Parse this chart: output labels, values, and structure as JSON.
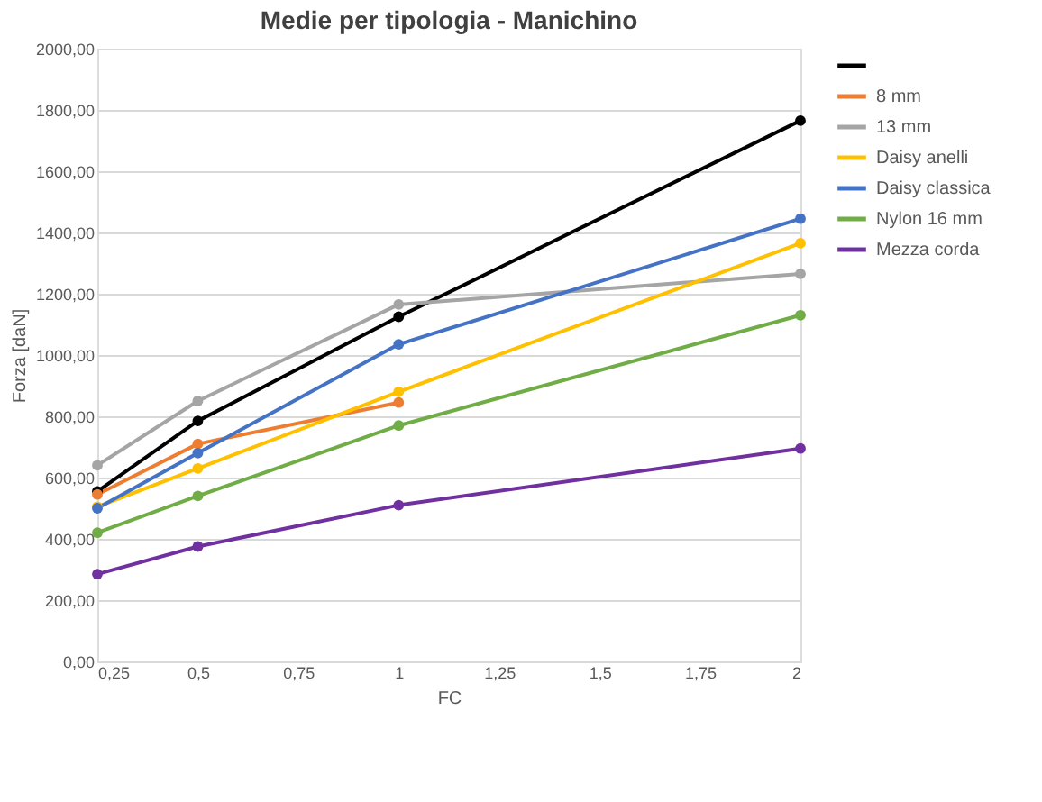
{
  "chart_data": {
    "type": "line",
    "title": "Medie per tipologia - Manichino",
    "xlabel": "FC",
    "ylabel": "Forza [daN]",
    "x": [
      0.25,
      0.5,
      1,
      2
    ],
    "series": [
      {
        "color": "#000000",
        "values": [
          555,
          785,
          1125,
          1765
        ]
      },
      {
        "name": "8 mm",
        "color": "#ed7d31",
        "values": [
          545,
          710,
          845,
          null
        ]
      },
      {
        "name": "13 mm",
        "color": "#a5a5a5",
        "values": [
          640,
          850,
          1165,
          1265
        ]
      },
      {
        "name": "Daisy anelli",
        "color": "#ffc000",
        "values": [
          505,
          630,
          880,
          1365
        ]
      },
      {
        "name": "Daisy classica",
        "color": "#4472c4",
        "values": [
          500,
          680,
          1035,
          1445
        ]
      },
      {
        "name": "Nylon 16 mm",
        "color": "#70ad47",
        "values": [
          420,
          540,
          770,
          1130
        ]
      },
      {
        "name": "Mezza corda",
        "color": "#7030a0",
        "values": [
          285,
          375,
          510,
          695
        ]
      }
    ],
    "xlim": [
      0.25,
      2
    ],
    "xticks": [
      {
        "value": 0.25,
        "label": "0,25"
      },
      {
        "value": 0.5,
        "label": "0,5"
      },
      {
        "value": 0.75,
        "label": "0,75"
      },
      1,
      {
        "value": 1.25,
        "label": "1,25"
      },
      {
        "value": 1.5,
        "label": "1,5"
      },
      {
        "value": 1.75,
        "label": "1,75"
      },
      2
    ],
    "ylim": [
      0,
      2000
    ],
    "yticks": [
      {
        "value": 0,
        "label": "0,00"
      },
      {
        "value": 200,
        "label": "200,00"
      },
      {
        "value": 400,
        "label": "400,00"
      },
      {
        "value": 600,
        "label": "600,00"
      },
      {
        "value": 800,
        "label": "800,00"
      },
      {
        "value": 1000,
        "label": "1000,00"
      },
      {
        "value": 1200,
        "label": "1200,00"
      },
      {
        "value": 1400,
        "label": "1400,00"
      },
      {
        "value": 1600,
        "label": "1600,00"
      },
      {
        "value": 1800,
        "label": "1800,00"
      },
      {
        "value": 2000,
        "label": "2000,00"
      }
    ],
    "grid": "y",
    "legend": "right",
    "marker": "circle",
    "line_style": "solid"
  }
}
